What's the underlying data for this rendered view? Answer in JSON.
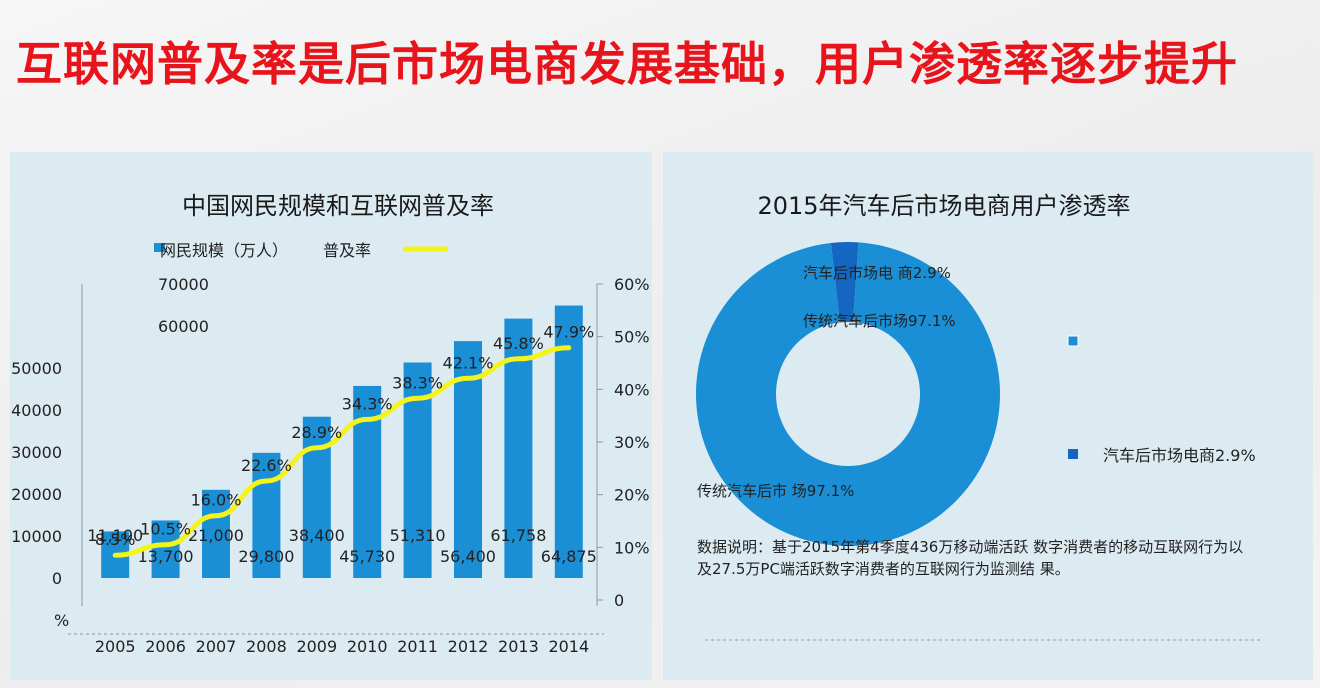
{
  "page": {
    "title": "互联网普及率是后市场电商发展基础，用户渗透率逐步提升"
  },
  "chart_data": [
    {
      "type": "bar",
      "title": "中国网民规模和互联网普及率",
      "categories": [
        "2005",
        "2006",
        "2007",
        "2008",
        "2009",
        "2010",
        "2011",
        "2012",
        "2013",
        "2014"
      ],
      "series": [
        {
          "name": "网民规模（万人）",
          "type": "bar",
          "color": "#1b8fd6",
          "values": [
            11100,
            13700,
            21000,
            29800,
            38400,
            45730,
            51310,
            56400,
            61758,
            64875
          ],
          "data_labels": [
            "11,100",
            "13,700",
            "21,000",
            "29,800",
            "38,400",
            "45,730",
            "51,310",
            "56,400",
            "61,758",
            "64,875"
          ]
        },
        {
          "name": "普及率",
          "type": "line",
          "axis": "right",
          "color": "#f4f41a",
          "values": [
            8.5,
            10.5,
            16.0,
            22.6,
            28.9,
            34.3,
            38.3,
            42.1,
            45.8,
            47.9
          ],
          "data_labels": [
            "8.5%",
            "10.5%",
            "16.0%",
            "22.6%",
            "28.9%",
            "34.3%",
            "38.3%",
            "42.1%",
            "45.8%",
            "47.9%"
          ]
        }
      ],
      "left_axis": {
        "ticks": [
          "0",
          "10000",
          "20000",
          "30000",
          "40000",
          "50000"
        ],
        "extra_labels": [
          "60000",
          "70000"
        ],
        "unit_label": "%"
      },
      "right_axis": {
        "ticks": [
          "0",
          "10%",
          "20%",
          "30%",
          "40%",
          "50%",
          "60%"
        ],
        "ylim": [
          0,
          60
        ]
      },
      "legend": {
        "placement": "top"
      }
    },
    {
      "type": "pie",
      "title": "2015年汽车后市场电商用户渗透率",
      "slices": [
        {
          "name": "汽车后市场电商",
          "value": 2.9,
          "color": "#1466c0"
        },
        {
          "name": "传统汽车后市场",
          "value": 97.1,
          "color": "#1b8fd6"
        }
      ],
      "slice_labels": {
        "ecommerce": "汽车后市场电 商2.9%",
        "traditional_inner": "传统汽车后市场97.1%",
        "traditional_outer": "传统汽车后市 场97.1%"
      },
      "legend_entries": [
        "",
        "汽车后市场电商2.9%"
      ],
      "note": "数据说明：基于2015年第4季度436万移动端活跃 数字消费者的移动互联网行为以及27.5万PC端活跃数字消费者的互联网行为监测结 果。"
    }
  ]
}
